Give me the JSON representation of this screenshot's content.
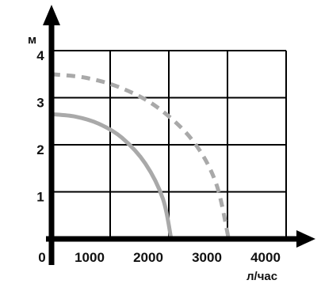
{
  "chart_data": {
    "type": "line",
    "title": "",
    "xlabel": "л/час",
    "ylabel": "м",
    "xlim": [
      0,
      4000
    ],
    "ylim": [
      0,
      4
    ],
    "x_ticks": [
      "0",
      "1000",
      "2000",
      "3000",
      "4000"
    ],
    "y_ticks": [
      "1",
      "2",
      "3",
      "4"
    ],
    "grid": true,
    "series": [
      {
        "style": "solid",
        "color": "#a9a9a9",
        "x": [
          0,
          400,
          800,
          1200,
          1600,
          1900,
          2040
        ],
        "y": [
          2.65,
          2.6,
          2.45,
          2.15,
          1.6,
          0.85,
          0
        ]
      },
      {
        "style": "dashed",
        "color": "#a9a9a9",
        "x": [
          0,
          600,
          1200,
          1800,
          2400,
          2800,
          3020
        ],
        "y": [
          3.5,
          3.42,
          3.2,
          2.8,
          2.1,
          1.2,
          0
        ]
      }
    ]
  }
}
